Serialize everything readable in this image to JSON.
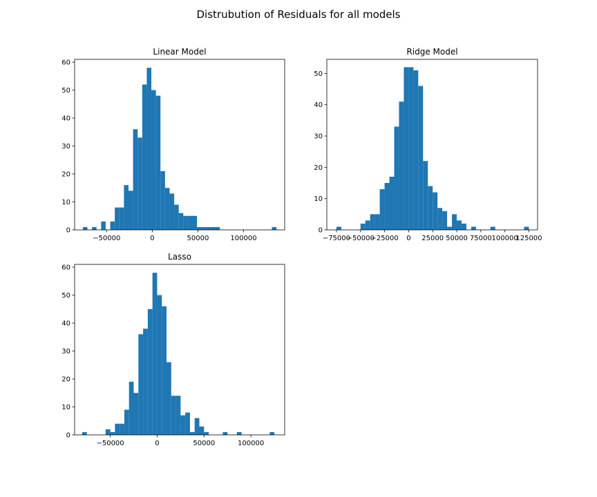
{
  "figure": {
    "title": "Distrubution of Residuals for all models"
  },
  "chart_data": [
    {
      "type": "bar",
      "title": "Linear Model",
      "bar_color": "#1f77b4",
      "xlim": [
        -85000,
        145000
      ],
      "ylim": [
        0,
        61
      ],
      "xticks": [
        -50000,
        0,
        50000,
        100000
      ],
      "xtick_labels": [
        "−50000",
        "0",
        "50000",
        "100000"
      ],
      "yticks": [
        0,
        10,
        20,
        30,
        40,
        50,
        60
      ],
      "ytick_labels": [
        "0",
        "10",
        "20",
        "30",
        "40",
        "50",
        "60"
      ],
      "bins": [
        {
          "x0": -76000,
          "x1": -71000,
          "count": 1
        },
        {
          "x0": -66000,
          "x1": -61000,
          "count": 1
        },
        {
          "x0": -56000,
          "x1": -51000,
          "count": 3
        },
        {
          "x0": -46000,
          "x1": -41000,
          "count": 3
        },
        {
          "x0": -41000,
          "x1": -36000,
          "count": 8
        },
        {
          "x0": -36000,
          "x1": -31000,
          "count": 8
        },
        {
          "x0": -31000,
          "x1": -26000,
          "count": 16
        },
        {
          "x0": -26000,
          "x1": -21000,
          "count": 14
        },
        {
          "x0": -21000,
          "x1": -16000,
          "count": 36
        },
        {
          "x0": -16000,
          "x1": -11000,
          "count": 33
        },
        {
          "x0": -11000,
          "x1": -6000,
          "count": 52
        },
        {
          "x0": -6000,
          "x1": -1000,
          "count": 58
        },
        {
          "x0": -1000,
          "x1": 4000,
          "count": 50
        },
        {
          "x0": 4000,
          "x1": 9000,
          "count": 48
        },
        {
          "x0": 9000,
          "x1": 14000,
          "count": 21
        },
        {
          "x0": 14000,
          "x1": 19000,
          "count": 15
        },
        {
          "x0": 19000,
          "x1": 24000,
          "count": 13
        },
        {
          "x0": 24000,
          "x1": 29000,
          "count": 9
        },
        {
          "x0": 29000,
          "x1": 34000,
          "count": 6
        },
        {
          "x0": 34000,
          "x1": 39000,
          "count": 5
        },
        {
          "x0": 39000,
          "x1": 44000,
          "count": 5
        },
        {
          "x0": 44000,
          "x1": 49000,
          "count": 5
        },
        {
          "x0": 49000,
          "x1": 54000,
          "count": 1
        },
        {
          "x0": 54000,
          "x1": 59000,
          "count": 1
        },
        {
          "x0": 59000,
          "x1": 64000,
          "count": 1
        },
        {
          "x0": 64000,
          "x1": 69000,
          "count": 1
        },
        {
          "x0": 69000,
          "x1": 74000,
          "count": 1
        },
        {
          "x0": 131000,
          "x1": 136000,
          "count": 1
        }
      ]
    },
    {
      "type": "bar",
      "title": "Ridge Model",
      "bar_color": "#1f77b4",
      "xlim": [
        -85000,
        134000
      ],
      "ylim": [
        0,
        54.5
      ],
      "xticks": [
        -75000,
        -50000,
        -25000,
        0,
        25000,
        50000,
        75000,
        100000,
        125000
      ],
      "xtick_labels": [
        "−75000",
        "−50000",
        "−25000",
        "0",
        "25000",
        "50000",
        "75000",
        "100000",
        "125000"
      ],
      "yticks": [
        0,
        10,
        20,
        30,
        40,
        50
      ],
      "ytick_labels": [
        "0",
        "10",
        "20",
        "30",
        "40",
        "50"
      ],
      "bins": [
        {
          "x0": -75000,
          "x1": -70000,
          "count": 1
        },
        {
          "x0": -50000,
          "x1": -45000,
          "count": 2
        },
        {
          "x0": -45000,
          "x1": -40000,
          "count": 3
        },
        {
          "x0": -40000,
          "x1": -35000,
          "count": 5
        },
        {
          "x0": -35000,
          "x1": -30000,
          "count": 5
        },
        {
          "x0": -30000,
          "x1": -25000,
          "count": 13
        },
        {
          "x0": -25000,
          "x1": -20000,
          "count": 15
        },
        {
          "x0": -20000,
          "x1": -15000,
          "count": 17
        },
        {
          "x0": -15000,
          "x1": -10000,
          "count": 33
        },
        {
          "x0": -10000,
          "x1": -5000,
          "count": 41
        },
        {
          "x0": -5000,
          "x1": 0,
          "count": 52
        },
        {
          "x0": 0,
          "x1": 5000,
          "count": 52
        },
        {
          "x0": 5000,
          "x1": 10000,
          "count": 51
        },
        {
          "x0": 10000,
          "x1": 15000,
          "count": 46
        },
        {
          "x0": 15000,
          "x1": 20000,
          "count": 22
        },
        {
          "x0": 20000,
          "x1": 25000,
          "count": 14
        },
        {
          "x0": 25000,
          "x1": 30000,
          "count": 12
        },
        {
          "x0": 30000,
          "x1": 35000,
          "count": 7
        },
        {
          "x0": 35000,
          "x1": 40000,
          "count": 6
        },
        {
          "x0": 40000,
          "x1": 45000,
          "count": 1
        },
        {
          "x0": 45000,
          "x1": 50000,
          "count": 5
        },
        {
          "x0": 50000,
          "x1": 55000,
          "count": 3
        },
        {
          "x0": 55000,
          "x1": 60000,
          "count": 2
        },
        {
          "x0": 65000,
          "x1": 70000,
          "count": 1
        },
        {
          "x0": 85000,
          "x1": 90000,
          "count": 1
        },
        {
          "x0": 120000,
          "x1": 125000,
          "count": 1
        }
      ]
    },
    {
      "type": "bar",
      "title": "Lasso",
      "bar_color": "#1f77b4",
      "xlim": [
        -88000,
        136000
      ],
      "ylim": [
        0,
        61
      ],
      "xticks": [
        -50000,
        0,
        50000,
        100000
      ],
      "xtick_labels": [
        "−50000",
        "0",
        "50000",
        "100000"
      ],
      "yticks": [
        0,
        10,
        20,
        30,
        40,
        50,
        60
      ],
      "ytick_labels": [
        "0",
        "10",
        "20",
        "30",
        "40",
        "50",
        "60"
      ],
      "bins": [
        {
          "x0": -80000,
          "x1": -75000,
          "count": 1
        },
        {
          "x0": -55000,
          "x1": -50000,
          "count": 2
        },
        {
          "x0": -50000,
          "x1": -45000,
          "count": 1
        },
        {
          "x0": -45000,
          "x1": -40000,
          "count": 4
        },
        {
          "x0": -40000,
          "x1": -35000,
          "count": 4
        },
        {
          "x0": -35000,
          "x1": -30000,
          "count": 9
        },
        {
          "x0": -30000,
          "x1": -25000,
          "count": 19
        },
        {
          "x0": -25000,
          "x1": -20000,
          "count": 15
        },
        {
          "x0": -20000,
          "x1": -15000,
          "count": 36
        },
        {
          "x0": -15000,
          "x1": -10000,
          "count": 38
        },
        {
          "x0": -10000,
          "x1": -5000,
          "count": 45
        },
        {
          "x0": -5000,
          "x1": 0,
          "count": 58
        },
        {
          "x0": 0,
          "x1": 5000,
          "count": 50
        },
        {
          "x0": 5000,
          "x1": 10000,
          "count": 46
        },
        {
          "x0": 10000,
          "x1": 15000,
          "count": 26
        },
        {
          "x0": 15000,
          "x1": 20000,
          "count": 14
        },
        {
          "x0": 20000,
          "x1": 25000,
          "count": 14
        },
        {
          "x0": 25000,
          "x1": 30000,
          "count": 7
        },
        {
          "x0": 30000,
          "x1": 35000,
          "count": 8
        },
        {
          "x0": 35000,
          "x1": 40000,
          "count": 1
        },
        {
          "x0": 40000,
          "x1": 45000,
          "count": 6
        },
        {
          "x0": 45000,
          "x1": 50000,
          "count": 3
        },
        {
          "x0": 50000,
          "x1": 55000,
          "count": 1
        },
        {
          "x0": 70000,
          "x1": 75000,
          "count": 1
        },
        {
          "x0": 85000,
          "x1": 90000,
          "count": 1
        },
        {
          "x0": 120000,
          "x1": 125000,
          "count": 1
        }
      ]
    }
  ]
}
